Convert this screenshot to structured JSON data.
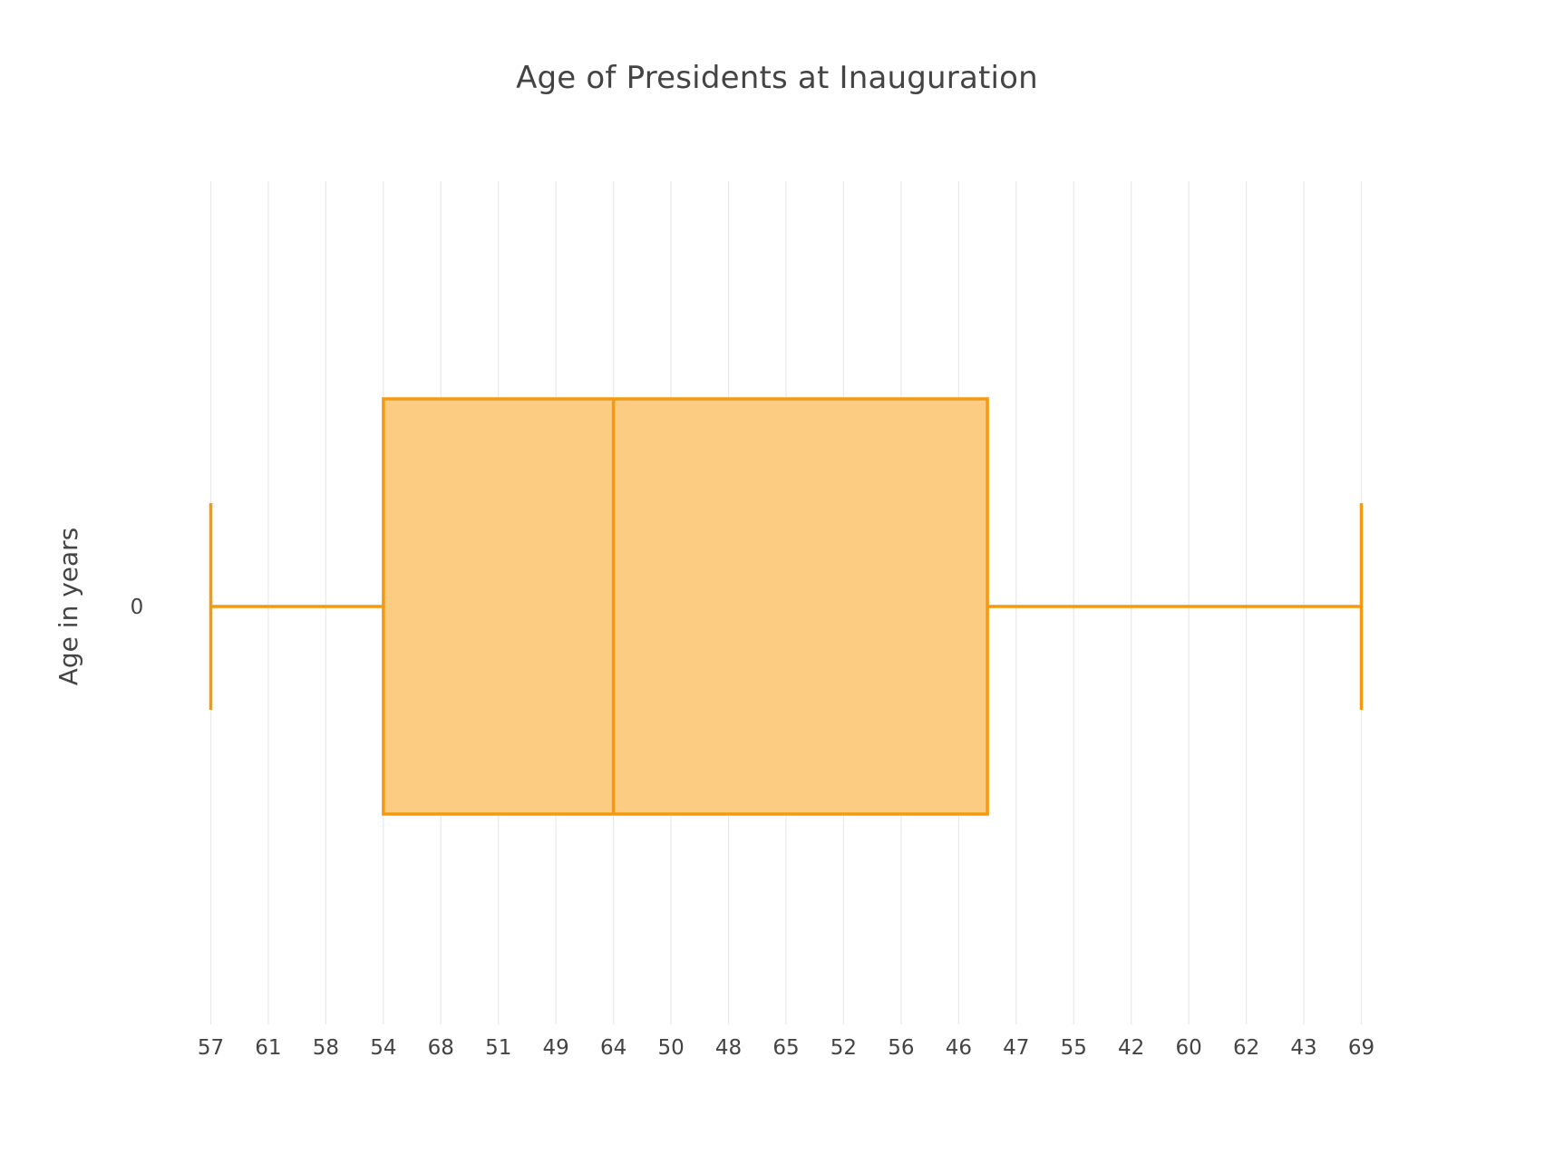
{
  "chart_data": {
    "type": "box",
    "title": "Age of Presidents at Inauguration",
    "xlabel": "",
    "ylabel": "Age in years",
    "orientation": "horizontal",
    "x_axis_type": "category",
    "x_categories": [
      "57",
      "61",
      "58",
      "54",
      "68",
      "51",
      "49",
      "64",
      "50",
      "48",
      "65",
      "52",
      "56",
      "46",
      "47",
      "55",
      "42",
      "60",
      "62",
      "43",
      "69"
    ],
    "y_categories": [
      "0"
    ],
    "grid": "vertical gridlines at every category",
    "box": {
      "name": "0",
      "lower_fence": "57",
      "q1": "54",
      "median": "64",
      "q3_index": 13.5,
      "upper_fence": "69"
    },
    "colors": {
      "line": "#f5990e",
      "fill": "#fcca7e",
      "grid": "#e9e9e9",
      "text": "#444444"
    }
  }
}
